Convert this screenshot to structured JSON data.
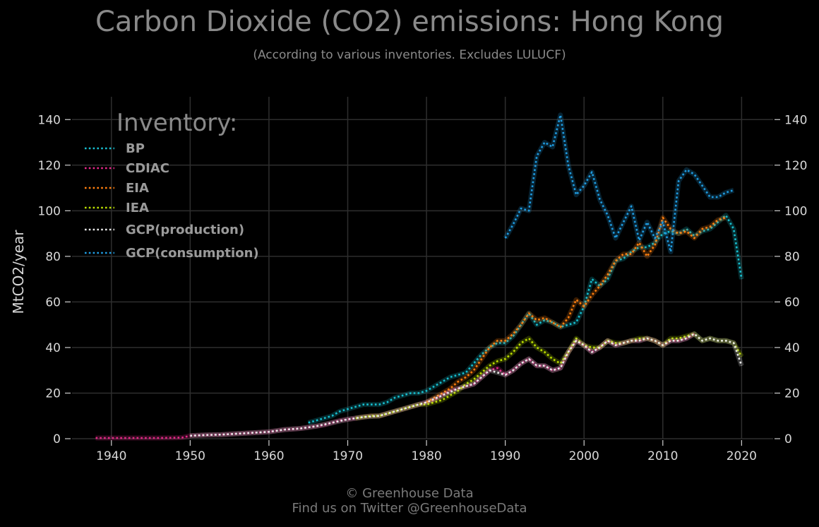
{
  "title": "Carbon Dioxide (CO2) emissions: Hong Kong",
  "subtitle": "(According to various inventories. Excludes LULUCF)",
  "footer": {
    "line1": "© Greenhouse Data",
    "line2": "Find us on Twitter @GreenhouseData"
  },
  "chart_data": {
    "type": "line",
    "ylabel": "MtCO2/year",
    "xlim": [
      1935,
      2024
    ],
    "ylim": [
      0,
      150
    ],
    "xticks": [
      1940,
      1950,
      1960,
      1970,
      1980,
      1990,
      2000,
      2010,
      2020
    ],
    "yticks": [
      0,
      20,
      40,
      60,
      80,
      100,
      120,
      140
    ],
    "grid": true,
    "legend": {
      "title": "Inventory:",
      "placement": "top-left"
    },
    "series": [
      {
        "name": "BP",
        "color": "#17becf",
        "x": [
          1965,
          1966,
          1967,
          1968,
          1969,
          1970,
          1971,
          1972,
          1973,
          1974,
          1975,
          1976,
          1977,
          1978,
          1979,
          1980,
          1981,
          1982,
          1983,
          1984,
          1985,
          1986,
          1987,
          1988,
          1989,
          1990,
          1991,
          1992,
          1993,
          1994,
          1995,
          1996,
          1997,
          1998,
          1999,
          2000,
          2001,
          2002,
          2003,
          2004,
          2005,
          2006,
          2007,
          2008,
          2009,
          2010,
          2011,
          2012,
          2013,
          2014,
          2015,
          2016,
          2017,
          2018,
          2019,
          2020
        ],
        "y": [
          7,
          8,
          9,
          10,
          12,
          13,
          14,
          15,
          15,
          15,
          16,
          18,
          19,
          20,
          20,
          21,
          23,
          25,
          27,
          28,
          29,
          33,
          37,
          40,
          42,
          42,
          45,
          50,
          55,
          50,
          52,
          51,
          49,
          50,
          51,
          58,
          70,
          67,
          70,
          78,
          79,
          82,
          84,
          84,
          86,
          90,
          91,
          90,
          92,
          89,
          91,
          92,
          95,
          98,
          92,
          70
        ]
      },
      {
        "name": "CDIAC",
        "color": "#e7298a",
        "x": [
          1938,
          1940,
          1942,
          1944,
          1946,
          1948,
          1949,
          1950,
          1951,
          1952,
          1953,
          1954,
          1955,
          1956,
          1957,
          1958,
          1959,
          1960,
          1961,
          1962,
          1963,
          1964,
          1965,
          1966,
          1967,
          1968,
          1969,
          1970,
          1971,
          1972,
          1973,
          1974,
          1975,
          1976,
          1977,
          1978,
          1979,
          1980,
          1981,
          1982,
          1983,
          1984,
          1985,
          1986,
          1987,
          1988,
          1989,
          1990,
          1991,
          1992,
          1993,
          1994,
          1995,
          1996,
          1997,
          1998,
          1999,
          2000,
          2001,
          2002,
          2003,
          2004,
          2005,
          2006,
          2007,
          2008,
          2009,
          2010,
          2011,
          2012,
          2013,
          2014
        ],
        "y": [
          0.3,
          0.3,
          0.3,
          0.3,
          0.3,
          0.4,
          0.5,
          1.3,
          1.5,
          1.6,
          1.7,
          1.8,
          2.0,
          2.2,
          2.4,
          2.6,
          2.8,
          3.0,
          3.5,
          4.0,
          4.2,
          4.5,
          5.0,
          5.5,
          6.0,
          7.0,
          8.0,
          8.5,
          9.0,
          9.5,
          10.0,
          10.0,
          11.0,
          12.0,
          13.0,
          14.0,
          15.0,
          16.0,
          17.0,
          19.0,
          21.0,
          22.0,
          23.0,
          24.0,
          27.0,
          30.0,
          31.0,
          28.0,
          30.0,
          33.0,
          35.0,
          32.0,
          32.0,
          30.0,
          31.0,
          38.0,
          43.0,
          41.0,
          38.0,
          40.0,
          43.0,
          41.0,
          42.0,
          43.0,
          43.0,
          44.0,
          43.0,
          41.0,
          43.0,
          43.0,
          44.0,
          46.0
        ]
      },
      {
        "name": "EIA",
        "color": "#ff7f0e",
        "x": [
          1980,
          1981,
          1982,
          1983,
          1984,
          1985,
          1986,
          1987,
          1988,
          1989,
          1990,
          1991,
          1992,
          1993,
          1994,
          1995,
          1996,
          1997,
          1998,
          1999,
          2000,
          2001,
          2002,
          2003,
          2004,
          2005,
          2006,
          2007,
          2008,
          2009,
          2010,
          2011,
          2012,
          2013,
          2014,
          2015,
          2016,
          2017,
          2018
        ],
        "y": [
          16,
          18,
          20,
          22,
          25,
          27,
          30,
          35,
          40,
          43,
          43,
          46,
          50,
          55,
          52,
          53,
          51,
          49,
          53,
          61,
          58,
          63,
          67,
          72,
          78,
          81,
          81,
          86,
          80,
          85,
          97,
          92,
          90,
          91,
          88,
          92,
          93,
          96,
          97
        ]
      },
      {
        "name": "IEA",
        "color": "#bcdf00",
        "x": [
          1971,
          1972,
          1973,
          1974,
          1975,
          1976,
          1977,
          1978,
          1979,
          1980,
          1981,
          1982,
          1983,
          1984,
          1985,
          1986,
          1987,
          1988,
          1989,
          1990,
          1991,
          1992,
          1993,
          1994,
          1995,
          1996,
          1997,
          1998,
          1999,
          2000,
          2001,
          2002,
          2003,
          2004,
          2005,
          2006,
          2007,
          2008,
          2009,
          2010,
          2011,
          2012,
          2013,
          2014,
          2015,
          2016,
          2017,
          2018,
          2019,
          2020
        ],
        "y": [
          9,
          9.5,
          10,
          10,
          11,
          12,
          13,
          14,
          15,
          15,
          16,
          17,
          19,
          21,
          24,
          26,
          29,
          32,
          34,
          35,
          38,
          42,
          44,
          40,
          38,
          35,
          33,
          38,
          44,
          41,
          40,
          40,
          43,
          42,
          42,
          43,
          44,
          44,
          43,
          41,
          44,
          44,
          45,
          46,
          43,
          44,
          43,
          43,
          42,
          36
        ]
      },
      {
        "name": "GCP(production)",
        "color": "#e8e8e8",
        "x": [
          1950,
          1952,
          1954,
          1956,
          1958,
          1960,
          1962,
          1964,
          1966,
          1968,
          1970,
          1972,
          1974,
          1976,
          1978,
          1980,
          1982,
          1984,
          1986,
          1988,
          1990,
          1991,
          1992,
          1993,
          1994,
          1995,
          1996,
          1997,
          1998,
          1999,
          2000,
          2001,
          2002,
          2003,
          2004,
          2005,
          2006,
          2007,
          2008,
          2009,
          2010,
          2011,
          2012,
          2013,
          2014,
          2015,
          2016,
          2017,
          2018,
          2019,
          2020
        ],
        "y": [
          1.3,
          1.6,
          1.8,
          2.2,
          2.6,
          3.0,
          4.0,
          4.5,
          5.5,
          7.0,
          8.5,
          9.5,
          10.0,
          12.0,
          14.0,
          16.0,
          19.0,
          22.0,
          24.0,
          30.0,
          28.0,
          30.0,
          33.0,
          35.0,
          32.0,
          32.0,
          30.0,
          31.0,
          38.0,
          43.0,
          41.0,
          38.0,
          40.0,
          43.0,
          41.0,
          42.0,
          43.0,
          43.0,
          44.0,
          43.0,
          41.0,
          43.0,
          43.0,
          44.0,
          46.0,
          43.0,
          44.0,
          43.0,
          43.0,
          42.0,
          32.0
        ]
      },
      {
        "name": "GCP(consumption)",
        "color": "#1f9be0",
        "x": [
          1990,
          1991,
          1992,
          1993,
          1994,
          1995,
          1996,
          1997,
          1998,
          1999,
          2000,
          2001,
          2002,
          2003,
          2004,
          2005,
          2006,
          2007,
          2008,
          2009,
          2010,
          2011,
          2012,
          2013,
          2014,
          2015,
          2016,
          2017,
          2018,
          2019
        ],
        "y": [
          88,
          94,
          101,
          100,
          124,
          130,
          128,
          142,
          120,
          107,
          111,
          117,
          105,
          98,
          88,
          95,
          102,
          87,
          95,
          88,
          95,
          82,
          113,
          118,
          116,
          111,
          106,
          106,
          108,
          109
        ]
      }
    ]
  }
}
